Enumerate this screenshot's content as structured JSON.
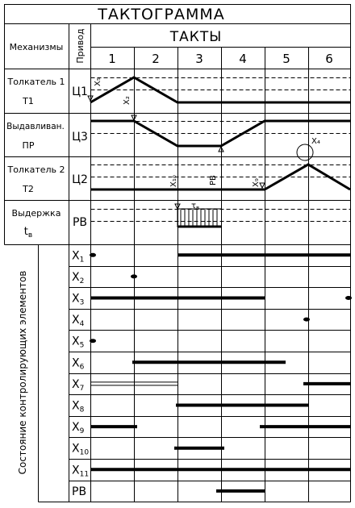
{
  "title": "ТАКТОГРАММА",
  "header": {
    "mechanisms": "Механизмы",
    "drive": "Привод",
    "takts": "ТАКТЫ",
    "takt_numbers": [
      "1",
      "2",
      "3",
      "4",
      "5",
      "6"
    ]
  },
  "mechanisms": [
    {
      "name": "Толкатель 1",
      "code": "T1",
      "drive": "Ц1"
    },
    {
      "name": "Выдавливан.",
      "code": "ПР",
      "drive": "Ц3"
    },
    {
      "name": "Толкатель 2",
      "code": "T2",
      "drive": "Ц2"
    },
    {
      "name": "Выдержка",
      "code": "t",
      "code_sub": "в",
      "drive": "РВ"
    }
  ],
  "annotations": {
    "x5": "X₅",
    "x2": "X₂",
    "x4": "X₄",
    "x10": "X₁₀",
    "pb": "РВ",
    "x9": "X₉",
    "tau": "τ",
    "tau_sub": "в"
  },
  "states_label": "Состояние контролирующих элементов",
  "sensors": [
    {
      "label": "X",
      "sub": "1"
    },
    {
      "label": "X",
      "sub": "2"
    },
    {
      "label": "X",
      "sub": "3"
    },
    {
      "label": "X",
      "sub": "4"
    },
    {
      "label": "X",
      "sub": "5"
    },
    {
      "label": "X",
      "sub": "6"
    },
    {
      "label": "X",
      "sub": "7"
    },
    {
      "label": "X",
      "sub": "8"
    },
    {
      "label": "X",
      "sub": "9"
    },
    {
      "label": "X",
      "sub": "10"
    },
    {
      "label": "X",
      "sub": "11"
    },
    {
      "label": "РВ",
      "sub": ""
    }
  ]
}
